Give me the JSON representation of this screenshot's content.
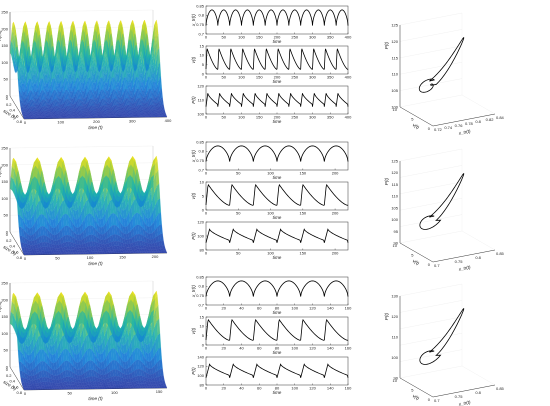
{
  "figure": {
    "rows": [
      {
        "surface": {
          "zlabel": "n(t,s)",
          "xlabel": "size (s)",
          "ylabel": "time (t)",
          "z_ticks": [
            "0",
            "50",
            "100",
            "150",
            "200",
            "250"
          ],
          "s_ticks": [
            "0",
            "0.2",
            "0.4",
            "0.6",
            "0.8"
          ],
          "t_ticks": [
            "0",
            "100",
            "200",
            "300",
            "400"
          ],
          "t_max": 400,
          "humps": 12
        },
        "traces": {
          "xlabel": "time",
          "x_ticks": [
            "0",
            "50",
            "100",
            "150",
            "200",
            "250",
            "300",
            "350",
            "400"
          ],
          "x_max": 400,
          "periods": 12,
          "panels": [
            {
              "ylabel": "x_tr(t)",
              "y_ticks": [
                "0.85",
                "0.8",
                "0.75",
                "0.7"
              ],
              "ylim": [
                0.7,
                0.85
              ]
            },
            {
              "ylabel": "v(t)",
              "y_ticks": [
                "15",
                "10",
                "5",
                "0"
              ],
              "ylim": [
                0,
                15
              ]
            },
            {
              "ylabel": "P(t)",
              "y_ticks": [
                "120",
                "110",
                "100"
              ],
              "ylim": [
                100,
                120
              ]
            }
          ]
        },
        "phase": {
          "zlabel": "P(t)",
          "xlabel": "v(t)",
          "ylabel": "x_tr(t)",
          "z_ticks": [
            "100",
            "105",
            "110",
            "115",
            "120",
            "125"
          ],
          "x_ticks": [
            "10",
            "5",
            "0"
          ],
          "y_ticks": [
            "0.72",
            "0.74",
            "0.76",
            "0.78",
            "0.8",
            "0.82",
            "0.84"
          ]
        }
      },
      {
        "surface": {
          "zlabel": "n(t,s)",
          "xlabel": "size (s)",
          "ylabel": "time (t)",
          "z_ticks": [
            "0",
            "50",
            "100",
            "150",
            "200",
            "250"
          ],
          "s_ticks": [
            "0",
            "0.2",
            "0.4",
            "0.6",
            "0.8"
          ],
          "t_ticks": [
            "0",
            "50",
            "100",
            "150",
            "200"
          ],
          "t_max": 220,
          "humps": 6
        },
        "traces": {
          "xlabel": "time",
          "x_ticks": [
            "0",
            "50",
            "100",
            "150",
            "200"
          ],
          "x_max": 220,
          "periods": 6,
          "panels": [
            {
              "ylabel": "x_tr(t)",
              "y_ticks": [
                "0.85",
                "0.8",
                "0.75",
                "0.7"
              ],
              "ylim": [
                0.7,
                0.85
              ]
            },
            {
              "ylabel": "v(t)",
              "y_ticks": [
                "10",
                "5",
                "0"
              ],
              "ylim": [
                0,
                12
              ]
            },
            {
              "ylabel": "P(t)",
              "y_ticks": [
                "120",
                "100",
                "80"
              ],
              "ylim": [
                80,
                120
              ]
            }
          ]
        },
        "phase": {
          "zlabel": "P(t)",
          "xlabel": "v(t)",
          "ylabel": "x_tr(t)",
          "z_ticks": [
            "90",
            "95",
            "100",
            "105",
            "110",
            "115",
            "120",
            "125"
          ],
          "x_ticks": [
            "10",
            "5",
            "0"
          ],
          "y_ticks": [
            "0.7",
            "0.75",
            "0.8",
            "0.85"
          ]
        }
      },
      {
        "surface": {
          "zlabel": "n(t,s)",
          "xlabel": "size (s)",
          "ylabel": "time (t)",
          "z_ticks": [
            "0",
            "50",
            "100",
            "150",
            "200",
            "250"
          ],
          "s_ticks": [
            "0",
            "0.2",
            "0.4",
            "0.6",
            "0.8"
          ],
          "t_ticks": [
            "0",
            "50",
            "100",
            "150"
          ],
          "t_max": 160,
          "humps": 6
        },
        "traces": {
          "xlabel": "time",
          "x_ticks": [
            "0",
            "20",
            "40",
            "60",
            "80",
            "100",
            "120",
            "140",
            "160"
          ],
          "x_max": 160,
          "periods": 6,
          "panels": [
            {
              "ylabel": "x_tr(t)",
              "y_ticks": [
                "0.85",
                "0.8",
                "0.75",
                "0.7"
              ],
              "ylim": [
                0.7,
                0.85
              ]
            },
            {
              "ylabel": "v(t)",
              "y_ticks": [
                "15",
                "10",
                "5",
                "0"
              ],
              "ylim": [
                0,
                15
              ]
            },
            {
              "ylabel": "P(t)",
              "y_ticks": [
                "140",
                "120",
                "100",
                "80"
              ],
              "ylim": [
                80,
                140
              ]
            }
          ]
        },
        "phase": {
          "zlabel": "P(t)",
          "xlabel": "v(t)",
          "ylabel": "x_tr(t)",
          "z_ticks": [
            "90",
            "100",
            "110",
            "120",
            "130"
          ],
          "x_ticks": [
            "10",
            "5",
            "0"
          ],
          "y_ticks": [
            "0.7",
            "0.75",
            "0.8",
            "0.85"
          ]
        }
      }
    ]
  },
  "chart_data": [
    {
      "type": "line",
      "row": 1,
      "x_label": "time",
      "x_range": [
        0,
        400
      ],
      "series": [
        {
          "name": "x_tr(t)",
          "ylim": [
            0.7,
            0.85
          ],
          "pattern": "periodic",
          "cycles": 12
        },
        {
          "name": "v(t)",
          "ylim": [
            0,
            15
          ],
          "pattern": "periodic",
          "cycles": 12
        },
        {
          "name": "P(t)",
          "ylim": [
            100,
            120
          ],
          "pattern": "periodic",
          "cycles": 12
        }
      ]
    },
    {
      "type": "line",
      "row": 2,
      "x_label": "time",
      "x_range": [
        0,
        220
      ],
      "series": [
        {
          "name": "x_tr(t)",
          "ylim": [
            0.7,
            0.85
          ],
          "pattern": "periodic",
          "cycles": 6
        },
        {
          "name": "v(t)",
          "ylim": [
            0,
            12
          ],
          "pattern": "periodic",
          "cycles": 6
        },
        {
          "name": "P(t)",
          "ylim": [
            80,
            120
          ],
          "pattern": "periodic",
          "cycles": 6
        }
      ]
    },
    {
      "type": "line",
      "row": 3,
      "x_label": "time",
      "x_range": [
        0,
        160
      ],
      "series": [
        {
          "name": "x_tr(t)",
          "ylim": [
            0.7,
            0.85
          ],
          "pattern": "periodic",
          "cycles": 6
        },
        {
          "name": "v(t)",
          "ylim": [
            0,
            15
          ],
          "pattern": "periodic",
          "cycles": 6
        },
        {
          "name": "P(t)",
          "ylim": [
            80,
            140
          ],
          "pattern": "periodic",
          "cycles": 6
        }
      ]
    }
  ],
  "colors": {
    "surface_low": "#2a2f9e",
    "surface_mid": "#1fb5a8",
    "surface_high": "#f5e51c",
    "trace": "#000000"
  }
}
